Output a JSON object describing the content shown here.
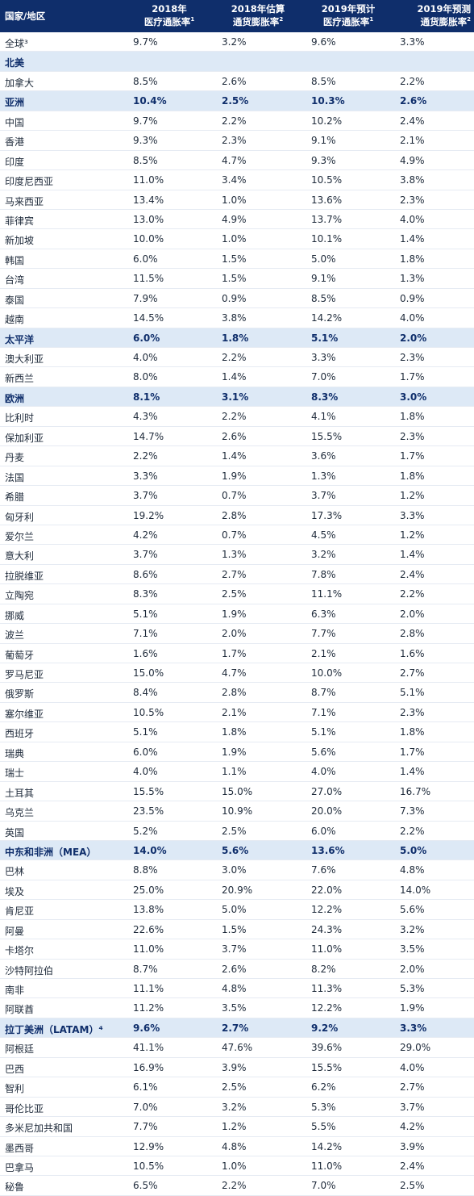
{
  "header": {
    "col0": "国家/地区",
    "col1_line1": "2018年",
    "col1_line2": "医疗通胀率",
    "col1_sup": "1",
    "col2_line1": "2018年估算",
    "col2_line2": "通货膨胀率",
    "col2_sup": "2",
    "col3_line1": "2019年预计",
    "col3_line2": "医疗通胀率",
    "col3_sup": "1",
    "col4_line1": "2019年预测",
    "col4_line2": "通货膨胀率",
    "col4_sup": "2"
  },
  "rows": [
    {
      "name": "全球³",
      "v1": "9.7%",
      "v2": "3.2%",
      "v3": "9.6%",
      "v4": "3.3%",
      "region": false
    },
    {
      "name": "北美",
      "v1": "",
      "v2": "",
      "v3": "",
      "v4": "",
      "region": true
    },
    {
      "name": "加拿大",
      "v1": "8.5%",
      "v2": "2.6%",
      "v3": "8.5%",
      "v4": "2.2%",
      "region": false
    },
    {
      "name": "亚洲",
      "v1": "10.4%",
      "v2": "2.5%",
      "v3": "10.3%",
      "v4": "2.6%",
      "region": true
    },
    {
      "name": "中国",
      "v1": "9.7%",
      "v2": "2.2%",
      "v3": "10.2%",
      "v4": "2.4%",
      "region": false
    },
    {
      "name": "香港",
      "v1": "9.3%",
      "v2": "2.3%",
      "v3": "9.1%",
      "v4": "2.1%",
      "region": false
    },
    {
      "name": "印度",
      "v1": "8.5%",
      "v2": "4.7%",
      "v3": "9.3%",
      "v4": "4.9%",
      "region": false
    },
    {
      "name": "印度尼西亚",
      "v1": "11.0%",
      "v2": "3.4%",
      "v3": "10.5%",
      "v4": "3.8%",
      "region": false
    },
    {
      "name": "马来西亚",
      "v1": "13.4%",
      "v2": "1.0%",
      "v3": "13.6%",
      "v4": "2.3%",
      "region": false
    },
    {
      "name": "菲律宾",
      "v1": "13.0%",
      "v2": "4.9%",
      "v3": "13.7%",
      "v4": "4.0%",
      "region": false
    },
    {
      "name": "新加坡",
      "v1": "10.0%",
      "v2": "1.0%",
      "v3": "10.1%",
      "v4": "1.4%",
      "region": false
    },
    {
      "name": "韩国",
      "v1": "6.0%",
      "v2": "1.5%",
      "v3": "5.0%",
      "v4": "1.8%",
      "region": false
    },
    {
      "name": "台湾",
      "v1": "11.5%",
      "v2": "1.5%",
      "v3": "9.1%",
      "v4": "1.3%",
      "region": false
    },
    {
      "name": "泰国",
      "v1": "7.9%",
      "v2": "0.9%",
      "v3": "8.5%",
      "v4": "0.9%",
      "region": false
    },
    {
      "name": "越南",
      "v1": "14.5%",
      "v2": "3.8%",
      "v3": "14.2%",
      "v4": "4.0%",
      "region": false
    },
    {
      "name": "太平洋",
      "v1": "6.0%",
      "v2": "1.8%",
      "v3": "5.1%",
      "v4": "2.0%",
      "region": true
    },
    {
      "name": "澳大利亚",
      "v1": "4.0%",
      "v2": "2.2%",
      "v3": "3.3%",
      "v4": "2.3%",
      "region": false
    },
    {
      "name": "新西兰",
      "v1": "8.0%",
      "v2": "1.4%",
      "v3": "7.0%",
      "v4": "1.7%",
      "region": false
    },
    {
      "name": "欧洲",
      "v1": "8.1%",
      "v2": "3.1%",
      "v3": "8.3%",
      "v4": "3.0%",
      "region": true
    },
    {
      "name": "比利时",
      "v1": "4.3%",
      "v2": "2.2%",
      "v3": "4.1%",
      "v4": "1.8%",
      "region": false
    },
    {
      "name": "保加利亚",
      "v1": "14.7%",
      "v2": "2.6%",
      "v3": "15.5%",
      "v4": "2.3%",
      "region": false
    },
    {
      "name": "丹麦",
      "v1": "2.2%",
      "v2": "1.4%",
      "v3": "3.6%",
      "v4": "1.7%",
      "region": false
    },
    {
      "name": "法国",
      "v1": "3.3%",
      "v2": "1.9%",
      "v3": "1.3%",
      "v4": "1.8%",
      "region": false
    },
    {
      "name": "希腊",
      "v1": "3.7%",
      "v2": "0.7%",
      "v3": "3.7%",
      "v4": "1.2%",
      "region": false
    },
    {
      "name": "匈牙利",
      "v1": "19.2%",
      "v2": "2.8%",
      "v3": "17.3%",
      "v4": "3.3%",
      "region": false
    },
    {
      "name": "爱尔兰",
      "v1": "4.2%",
      "v2": "0.7%",
      "v3": "4.5%",
      "v4": "1.2%",
      "region": false
    },
    {
      "name": "意大利",
      "v1": "3.7%",
      "v2": "1.3%",
      "v3": "3.2%",
      "v4": "1.4%",
      "region": false
    },
    {
      "name": "拉脱维亚",
      "v1": "8.6%",
      "v2": "2.7%",
      "v3": "7.8%",
      "v4": "2.4%",
      "region": false
    },
    {
      "name": "立陶宛",
      "v1": "8.3%",
      "v2": "2.5%",
      "v3": "11.1%",
      "v4": "2.2%",
      "region": false
    },
    {
      "name": "挪威",
      "v1": "5.1%",
      "v2": "1.9%",
      "v3": "6.3%",
      "v4": "2.0%",
      "region": false
    },
    {
      "name": "波兰",
      "v1": "7.1%",
      "v2": "2.0%",
      "v3": "7.7%",
      "v4": "2.8%",
      "region": false
    },
    {
      "name": "葡萄牙",
      "v1": "1.6%",
      "v2": "1.7%",
      "v3": "2.1%",
      "v4": "1.6%",
      "region": false
    },
    {
      "name": "罗马尼亚",
      "v1": "15.0%",
      "v2": "4.7%",
      "v3": "10.0%",
      "v4": "2.7%",
      "region": false
    },
    {
      "name": "俄罗斯",
      "v1": "8.4%",
      "v2": "2.8%",
      "v3": "8.7%",
      "v4": "5.1%",
      "region": false
    },
    {
      "name": "塞尔维亚",
      "v1": "10.5%",
      "v2": "2.1%",
      "v3": "7.1%",
      "v4": "2.3%",
      "region": false
    },
    {
      "name": "西班牙",
      "v1": "5.1%",
      "v2": "1.8%",
      "v3": "5.1%",
      "v4": "1.8%",
      "region": false
    },
    {
      "name": "瑞典",
      "v1": "6.0%",
      "v2": "1.9%",
      "v3": "5.6%",
      "v4": "1.7%",
      "region": false
    },
    {
      "name": "瑞士",
      "v1": "4.0%",
      "v2": "1.1%",
      "v3": "4.0%",
      "v4": "1.4%",
      "region": false
    },
    {
      "name": "土耳其",
      "v1": "15.5%",
      "v2": "15.0%",
      "v3": "27.0%",
      "v4": "16.7%",
      "region": false
    },
    {
      "name": "乌克兰",
      "v1": "23.5%",
      "v2": "10.9%",
      "v3": "20.0%",
      "v4": "7.3%",
      "region": false
    },
    {
      "name": "英国",
      "v1": "5.2%",
      "v2": "2.5%",
      "v3": "6.0%",
      "v4": "2.2%",
      "region": false
    },
    {
      "name": "中东和非洲（MEA）",
      "v1": "14.0%",
      "v2": "5.6%",
      "v3": "13.6%",
      "v4": "5.0%",
      "region": true
    },
    {
      "name": "巴林",
      "v1": "8.8%",
      "v2": "3.0%",
      "v3": "7.6%",
      "v4": "4.8%",
      "region": false
    },
    {
      "name": "埃及",
      "v1": "25.0%",
      "v2": "20.9%",
      "v3": "22.0%",
      "v4": "14.0%",
      "region": false
    },
    {
      "name": "肯尼亚",
      "v1": "13.8%",
      "v2": "5.0%",
      "v3": "12.2%",
      "v4": "5.6%",
      "region": false
    },
    {
      "name": "阿曼",
      "v1": "22.6%",
      "v2": "1.5%",
      "v3": "24.3%",
      "v4": "3.2%",
      "region": false
    },
    {
      "name": "卡塔尔",
      "v1": "11.0%",
      "v2": "3.7%",
      "v3": "11.0%",
      "v4": "3.5%",
      "region": false
    },
    {
      "name": "沙特阿拉伯",
      "v1": "8.7%",
      "v2": "2.6%",
      "v3": "8.2%",
      "v4": "2.0%",
      "region": false
    },
    {
      "name": "南非",
      "v1": "11.1%",
      "v2": "4.8%",
      "v3": "11.3%",
      "v4": "5.3%",
      "region": false
    },
    {
      "name": "阿联酋",
      "v1": "11.2%",
      "v2": "3.5%",
      "v3": "12.2%",
      "v4": "1.9%",
      "region": false
    },
    {
      "name": "拉丁美洲（LATAM）⁴",
      "v1": "9.6%",
      "v2": "2.7%",
      "v3": "9.2%",
      "v4": "3.3%",
      "region": true
    },
    {
      "name": "阿根廷",
      "v1": "41.1%",
      "v2": "47.6%",
      "v3": "39.6%",
      "v4": "29.0%",
      "region": false
    },
    {
      "name": "巴西",
      "v1": "16.9%",
      "v2": "3.9%",
      "v3": "15.5%",
      "v4": "4.0%",
      "region": false
    },
    {
      "name": "智利",
      "v1": "6.1%",
      "v2": "2.5%",
      "v3": "6.2%",
      "v4": "2.7%",
      "region": false
    },
    {
      "name": "哥伦比亚",
      "v1": "7.0%",
      "v2": "3.2%",
      "v3": "5.3%",
      "v4": "3.7%",
      "region": false
    },
    {
      "name": "多米尼加共和国",
      "v1": "7.7%",
      "v2": "1.2%",
      "v3": "5.5%",
      "v4": "4.2%",
      "region": false
    },
    {
      "name": "墨西哥",
      "v1": "12.9%",
      "v2": "4.8%",
      "v3": "14.2%",
      "v4": "3.9%",
      "region": false
    },
    {
      "name": "巴拿马",
      "v1": "10.5%",
      "v2": "1.0%",
      "v3": "11.0%",
      "v4": "2.4%",
      "region": false
    },
    {
      "name": "秘鲁",
      "v1": "6.5%",
      "v2": "2.2%",
      "v3": "7.0%",
      "v4": "2.5%",
      "region": false
    }
  ]
}
